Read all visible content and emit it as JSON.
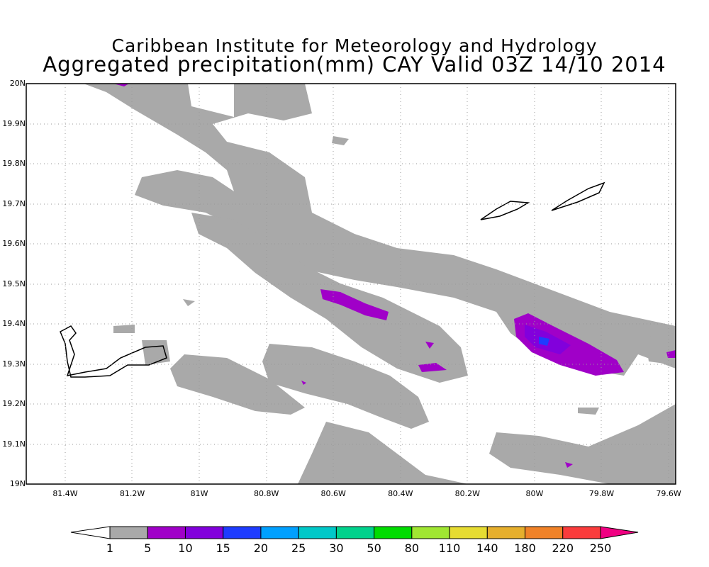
{
  "title": {
    "line1": "Caribbean Institute for Meteorology and Hydrology",
    "line2": "Aggregated precipitation(mm) CAY Valid 03Z 14/10 2014"
  },
  "axes": {
    "lat_labels": [
      "20N",
      "19.9N",
      "19.8N",
      "19.7N",
      "19.6N",
      "19.5N",
      "19.4N",
      "19.3N",
      "19.2N",
      "19.1N",
      "19N"
    ],
    "lon_labels": [
      "81.4W",
      "81.2W",
      "81W",
      "80.8W",
      "80.6W",
      "80.4W",
      "80.2W",
      "80W",
      "79.8W",
      "79.6W"
    ]
  },
  "colorbar": {
    "labels": [
      "1",
      "5",
      "10",
      "15",
      "20",
      "25",
      "30",
      "50",
      "80",
      "110",
      "140",
      "180",
      "220",
      "250"
    ],
    "colors": [
      "#ffffff",
      "#a9a9a9",
      "#a000c8",
      "#8200dc",
      "#1e3cff",
      "#00a0ff",
      "#00c8c8",
      "#00d28c",
      "#00dc00",
      "#a0e632",
      "#e6dc32",
      "#e6af2d",
      "#f08228",
      "#fa3c3c",
      "#f00082"
    ]
  }
}
